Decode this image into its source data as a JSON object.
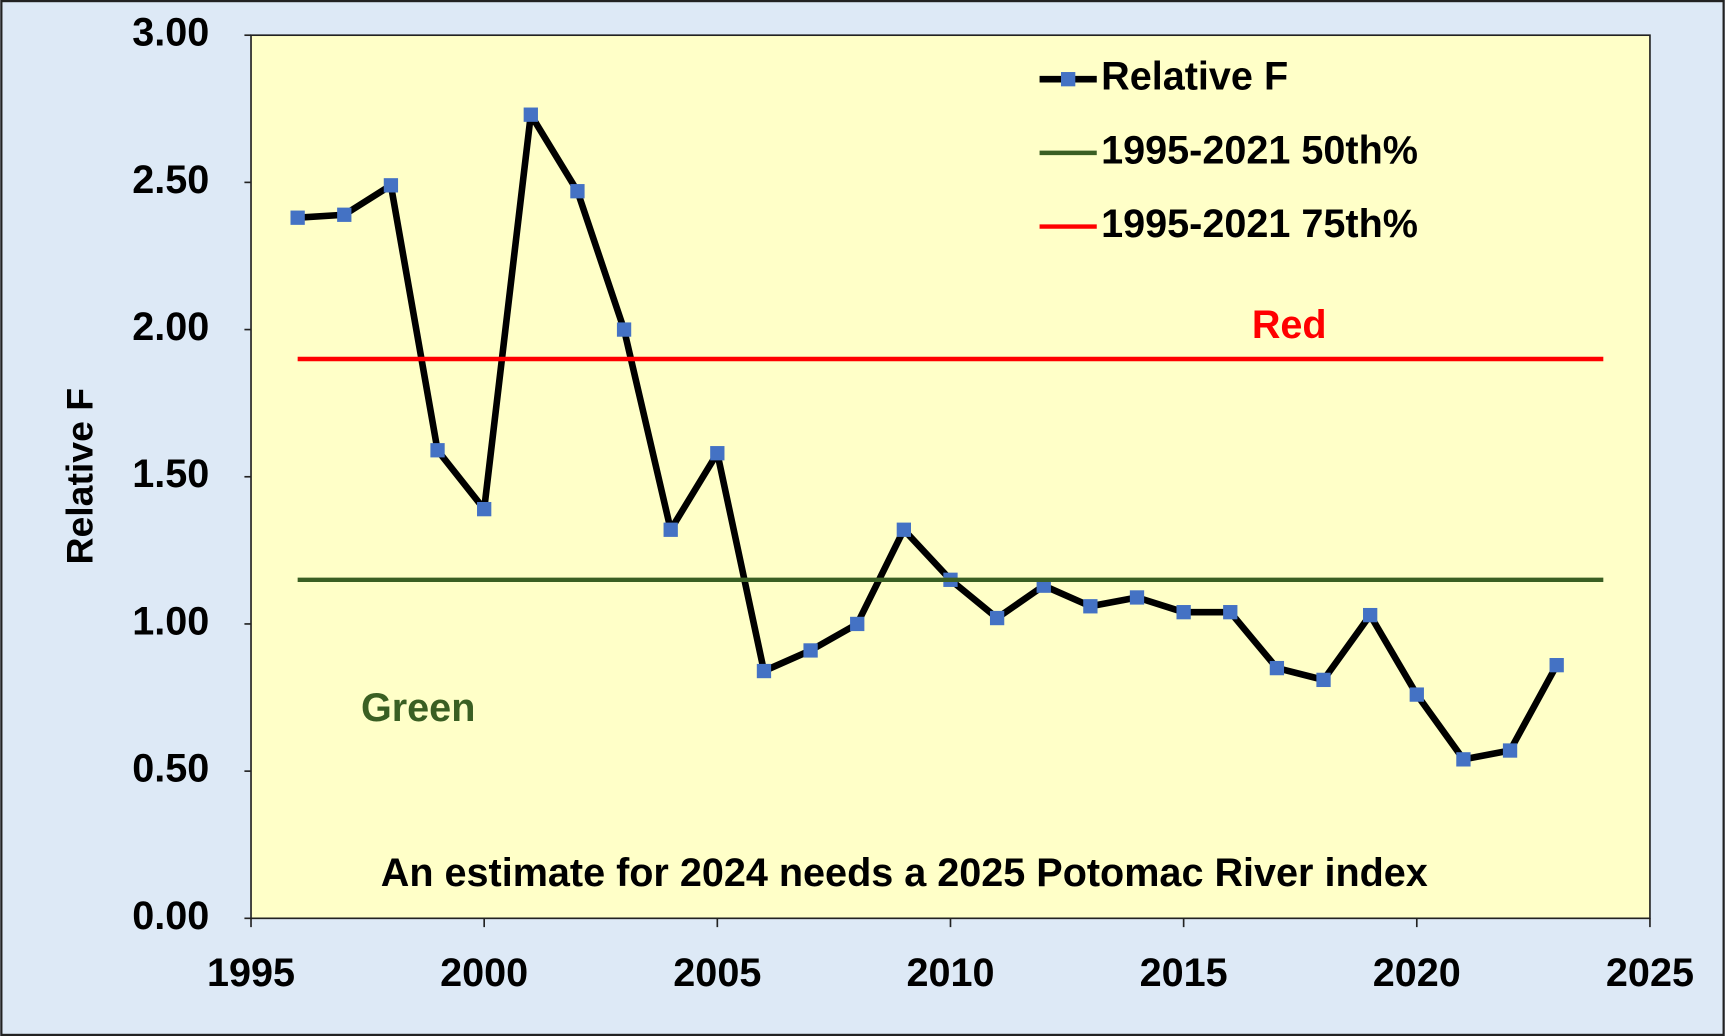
{
  "chart_data": {
    "type": "line",
    "y_label": "Relative F",
    "xlim": [
      1995,
      2025
    ],
    "xticks": [
      1995,
      2000,
      2005,
      2010,
      2015,
      2020,
      2025
    ],
    "ylim": [
      0,
      3
    ],
    "yticks": [
      {
        "value": 0,
        "label": "0.00"
      },
      {
        "value": 0.5,
        "label": "0.50"
      },
      {
        "value": 1,
        "label": "1.00"
      },
      {
        "value": 1.5,
        "label": "1.50"
      },
      {
        "value": 2,
        "label": "2.00"
      },
      {
        "value": 2.5,
        "label": "2.50"
      },
      {
        "value": 3,
        "label": "3.00"
      }
    ],
    "legend": "upper right",
    "series": [
      {
        "name": "Relative F",
        "color": "#000000",
        "marker_color": "#4472c4",
        "x": [
          1996,
          1997,
          1998,
          1999,
          2000,
          2001,
          2002,
          2003,
          2004,
          2005,
          2006,
          2007,
          2008,
          2009,
          2010,
          2011,
          2012,
          2013,
          2014,
          2015,
          2016,
          2017,
          2018,
          2019,
          2020,
          2021,
          2022,
          2023
        ],
        "values": [
          2.38,
          2.39,
          2.49,
          1.59,
          1.39,
          2.73,
          2.47,
          2.0,
          1.32,
          1.58,
          0.84,
          0.91,
          1.0,
          1.32,
          1.15,
          1.02,
          1.13,
          1.06,
          1.09,
          1.04,
          1.04,
          0.85,
          0.81,
          1.03,
          0.76,
          0.54,
          0.57,
          0.86
        ]
      },
      {
        "name": "1995-2021 50th%",
        "color": "#3a5f23",
        "x": [
          1996,
          2024
        ],
        "values": [
          1.15,
          1.15
        ]
      },
      {
        "name": "1995-2021 75th%",
        "color": "#ff0000",
        "x": [
          1996,
          2024
        ],
        "values": [
          1.9,
          1.9
        ]
      }
    ],
    "annotations": [
      {
        "text": "Red",
        "color": "#ff0000"
      },
      {
        "text": "Green",
        "color": "#3a5f23"
      },
      {
        "text": "An estimate for 2024 needs a 2025 Potomac River index",
        "color": "#000000"
      }
    ]
  }
}
